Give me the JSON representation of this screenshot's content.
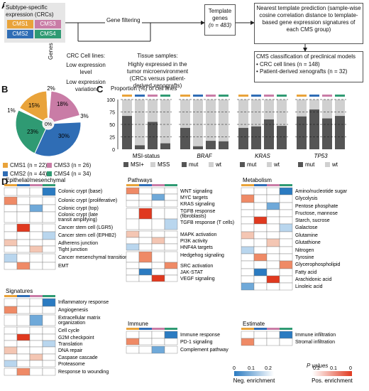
{
  "panel_labels": {
    "a": "A",
    "b": "B",
    "c": "C",
    "d": "D"
  },
  "colors": {
    "cms1": "#e9a33a",
    "cms2": "#2f6db5",
    "cms3": "#c97ca6",
    "cms4": "#2f9a73",
    "mut": "#555555",
    "wt": "#d0d0d0"
  },
  "panelA": {
    "subtype_box": "Subtype-specific expression (CRCs)",
    "cms": [
      "CMS1",
      "CMS3",
      "CMS2",
      "CMS4"
    ],
    "genes_label": "Genes",
    "gene_filtering": "Gene filtering",
    "crc_title": "CRC Cell lines:",
    "crc_items": [
      "Low expression level",
      "Low expression variation"
    ],
    "tissue_title": "Tissue samples:",
    "tissue_text": "Highly expressed in the tumor microenvironment (CRCs versus patient-derived xenografts)",
    "template_title": "Template genes",
    "template_n": "(n = 483)",
    "ntp_text": "Nearest template prediction (sample-wise cosine correlation distance to template-based gene expression signatures of each CMS group)",
    "classif_title": "CMS classification of preclinical models",
    "classif_items": [
      "• CRC cell lines (n = 148)",
      "• Patient-derived xenografts (n = 32)"
    ]
  },
  "panelB": {
    "center": "0%",
    "pct_labels": [
      "15%",
      "18%",
      "3%",
      "30%",
      "23%",
      "1%",
      "2%"
    ],
    "legend": [
      "CMS1 (n = 22)",
      "CMS3 (n = 26)",
      "CMS2 (n = 44)",
      "CMS4 (n = 34)"
    ]
  },
  "chart_data": {
    "type": "bar",
    "title": "Proportion (%) of cell lines",
    "ylim": [
      0,
      100
    ],
    "yticks": [
      "100",
      "75",
      "50",
      "25",
      "0"
    ],
    "groups": [
      {
        "name": "MSI-status",
        "legend": [
          "MSI+",
          "MSS"
        ],
        "mut": [
          67,
          8,
          55,
          12
        ]
      },
      {
        "name": "BRAF",
        "legend": [
          "mut",
          "wt"
        ],
        "mut": [
          43,
          6,
          17,
          16
        ]
      },
      {
        "name": "KRAS",
        "legend": [
          "mut",
          "wt"
        ],
        "mut": [
          43,
          46,
          60,
          47
        ]
      },
      {
        "name": "TP53",
        "legend": [
          "mut",
          "wt"
        ],
        "mut": [
          66,
          80,
          62,
          67
        ]
      }
    ]
  },
  "panelD": {
    "sections": {
      "epi": {
        "title": "Epithelial/mesenchymal",
        "rows": [
          "Colonic crypt (base)",
          "Colonic crypt (proliferative)",
          "Colonic crypt (top)",
          "Colonic crypt (late transit amplifying)",
          "Cancer stem cell (LGR5)",
          "Cancer stem cell (EPHB2)",
          "Adherens junction",
          "Tight junction",
          "Cancer mesenchymal transition",
          "EMT"
        ]
      },
      "sig": {
        "title": "Signatures",
        "rows": [
          "Inflammatory response",
          "Angiogenesis",
          "Extracellular matrix organization",
          "Cell cycle",
          "G2M checkpoint",
          "Translation",
          "DNA repair",
          "Caspase cascade",
          "Proteasome",
          "Response to wounding"
        ]
      },
      "path": {
        "title": "Pathways",
        "rows": [
          "WNT signaling",
          "MYC targets",
          "KRAS signaling",
          "TGFB response (fibroblasts)",
          "TGFB response (T cells)",
          "MAPK activation",
          "PI3K activity",
          "HNF4A targets",
          "Hedgehog signaling",
          "SRC activation",
          "JAK-STAT",
          "VEGF signaling"
        ]
      },
      "imm": {
        "title": "Immune",
        "rows": [
          "Immune response",
          "PD-1 signaling",
          "Complement pathway"
        ]
      },
      "met": {
        "title": "Metabolism",
        "rows": [
          "Amino/nucleotide sugar",
          "Glycolysis",
          "Pentose phosphate",
          "Fructose, mannose",
          "Starch, sucrose",
          "Galactose",
          "Glutamine",
          "Glutathione",
          "Nitrogen",
          "Tyrosine",
          "Glycerophospholipid",
          "Fatty acid",
          "Arachidonic acid",
          "Linoleic acid"
        ]
      },
      "est": {
        "title": "Estimate",
        "rows": [
          "Immune infiltration",
          "Stromal infiltration"
        ]
      }
    },
    "scale": {
      "title": "P values",
      "neg_ticks": [
        "0",
        "0.1",
        "0.2"
      ],
      "pos_ticks": [
        "0.2",
        "0.1",
        "0"
      ],
      "neg_label": "Neg. enrichment",
      "pos_label": "Pos. enrichment"
    }
  }
}
